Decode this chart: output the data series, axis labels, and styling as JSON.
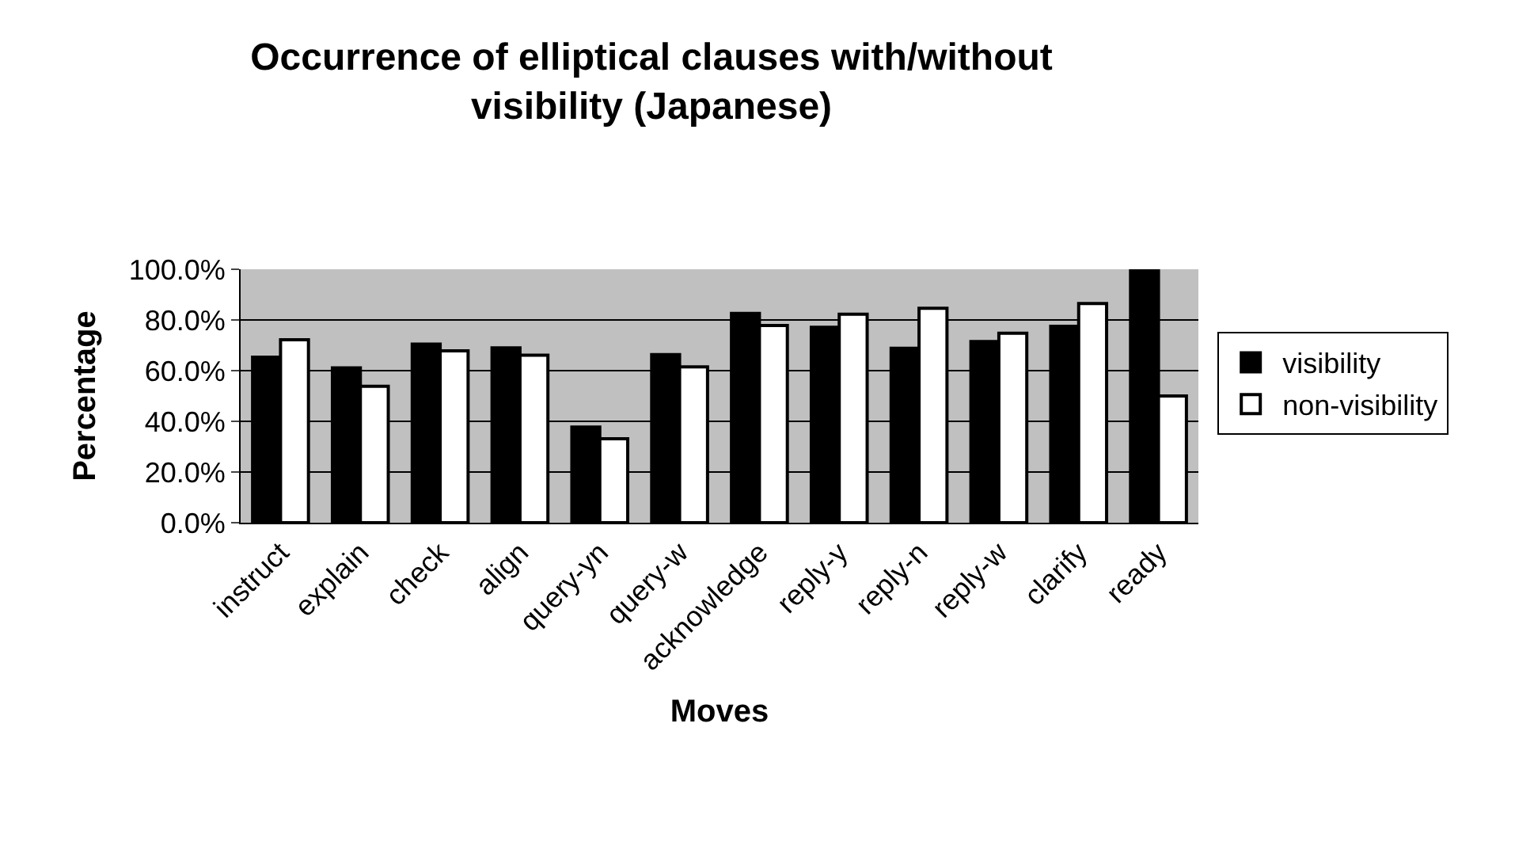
{
  "chart_data": {
    "type": "bar",
    "title": "Occurrence of elliptical clauses with/without visibility (Japanese)",
    "xlabel": "Moves",
    "ylabel": "Percentage",
    "categories": [
      "instruct",
      "explain",
      "check",
      "align",
      "query-yn",
      "query-w",
      "acknowledge",
      "reply-y",
      "reply-n",
      "reply-w",
      "clarify",
      "ready"
    ],
    "series": [
      {
        "name": "visibility",
        "color": "#000000",
        "values": [
          65.3,
          61.1,
          70.5,
          69.0,
          37.7,
          66.3,
          82.6,
          77.1,
          68.8,
          71.5,
          77.5,
          100
        ]
      },
      {
        "name": "non-visibility",
        "color": "#ffffff",
        "values": [
          72.2,
          53.8,
          67.8,
          66.1,
          33.1,
          61.5,
          77.8,
          82.3,
          84.6,
          74.8,
          86.5,
          50
        ]
      }
    ],
    "ylim": [
      0,
      100
    ],
    "yticks": [
      {
        "value": 0,
        "label": "0.0%"
      },
      {
        "value": 20,
        "label": "20.0%"
      },
      {
        "value": 40,
        "label": "40.0%"
      },
      {
        "value": 60,
        "label": "60.0%"
      },
      {
        "value": 80,
        "label": "80.0%"
      },
      {
        "value": 100,
        "label": "100.0%"
      }
    ],
    "grid": "y",
    "legend": "right"
  }
}
